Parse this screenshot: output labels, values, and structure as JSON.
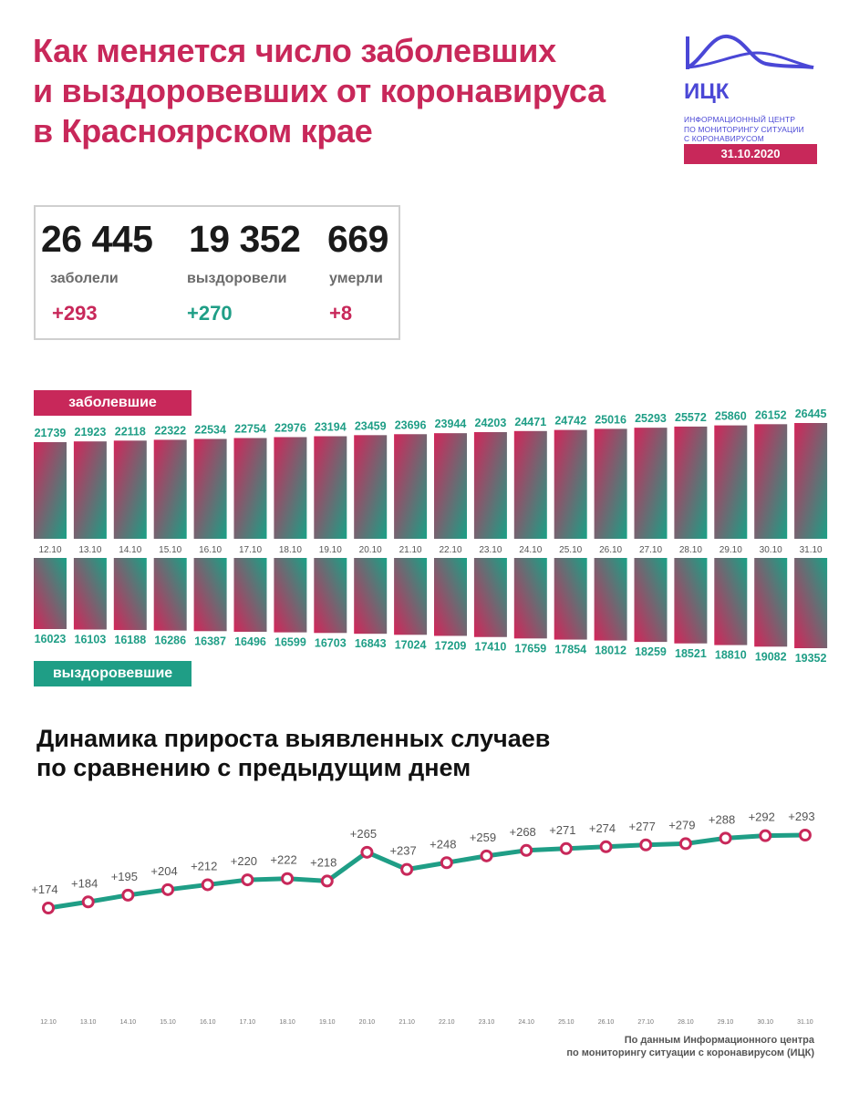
{
  "header": {
    "title_lines": [
      "Как меняется число заболевших",
      "и выздоровевших от коронавируса",
      "в Красноярском крае"
    ]
  },
  "logo": {
    "abbr": "ИЦК",
    "text_lines": [
      "ИНФОРМАЦИОННЫЙ ЦЕНТР",
      "ПО МОНИТОРИНГУ СИТУАЦИИ",
      "С КОРОНАВИРУСОМ"
    ],
    "date": "31.10.2020"
  },
  "stats": {
    "infected": {
      "value": "26 445",
      "label": "заболели",
      "delta": "+293"
    },
    "recovered": {
      "value": "19 352",
      "label": "выздоровели",
      "delta": "+270"
    },
    "deaths": {
      "value": "669",
      "label": "умерли",
      "delta": "+8"
    }
  },
  "bars_section": {
    "infected_label": "заболевшие",
    "recovered_label": "выздоровевшие"
  },
  "line_section": {
    "title_lines": [
      "Динамика прироста выявленных случаев",
      "по сравнению с предыдущим днем"
    ]
  },
  "source_lines": [
    "По данным Информационного центра",
    "по мониторингу ситуации с коронавирусом (ИЦК)"
  ],
  "colors": {
    "accent_pink": "#c8285a",
    "accent_teal": "#1f9e86",
    "logo_blue": "#4a47d6"
  },
  "chart_data": [
    {
      "type": "bar",
      "categories": [
        "12.10",
        "13.10",
        "14.10",
        "15.10",
        "16.10",
        "17.10",
        "18.10",
        "19.10",
        "20.10",
        "21.10",
        "22.10",
        "23.10",
        "24.10",
        "25.10",
        "26.10",
        "27.10",
        "28.10",
        "29.10",
        "30.10",
        "31.10"
      ],
      "series": [
        {
          "name": "заболевшие",
          "values": [
            21739,
            21923,
            22118,
            22322,
            22534,
            22754,
            22976,
            23194,
            23459,
            23696,
            23944,
            24203,
            24471,
            24742,
            25016,
            25293,
            25572,
            25860,
            26152,
            26445
          ]
        },
        {
          "name": "выздоровевшие",
          "values": [
            16023,
            16103,
            16188,
            16286,
            16387,
            16496,
            16599,
            16703,
            16843,
            17024,
            17209,
            17410,
            17659,
            17854,
            18012,
            18259,
            18521,
            18810,
            19082,
            19352
          ]
        }
      ]
    },
    {
      "type": "line",
      "categories": [
        "12.10",
        "13.10",
        "14.10",
        "15.10",
        "16.10",
        "17.10",
        "18.10",
        "19.10",
        "20.10",
        "21.10",
        "22.10",
        "23.10",
        "24.10",
        "25.10",
        "26.10",
        "27.10",
        "28.10",
        "29.10",
        "30.10",
        "31.10"
      ],
      "values": [
        174,
        184,
        195,
        204,
        212,
        220,
        222,
        218,
        265,
        237,
        248,
        259,
        268,
        271,
        274,
        277,
        279,
        288,
        292,
        293
      ],
      "point_labels": [
        "+174",
        "+184",
        "+195",
        "+204",
        "+212",
        "+220",
        "+222",
        "+218",
        "+265",
        "+237",
        "+248",
        "+259",
        "+268",
        "+271",
        "+274",
        "+277",
        "+279",
        "+288",
        "+292",
        "+293"
      ],
      "title": "Динамика прироста выявленных случаев по сравнению с предыдущим днем"
    }
  ]
}
